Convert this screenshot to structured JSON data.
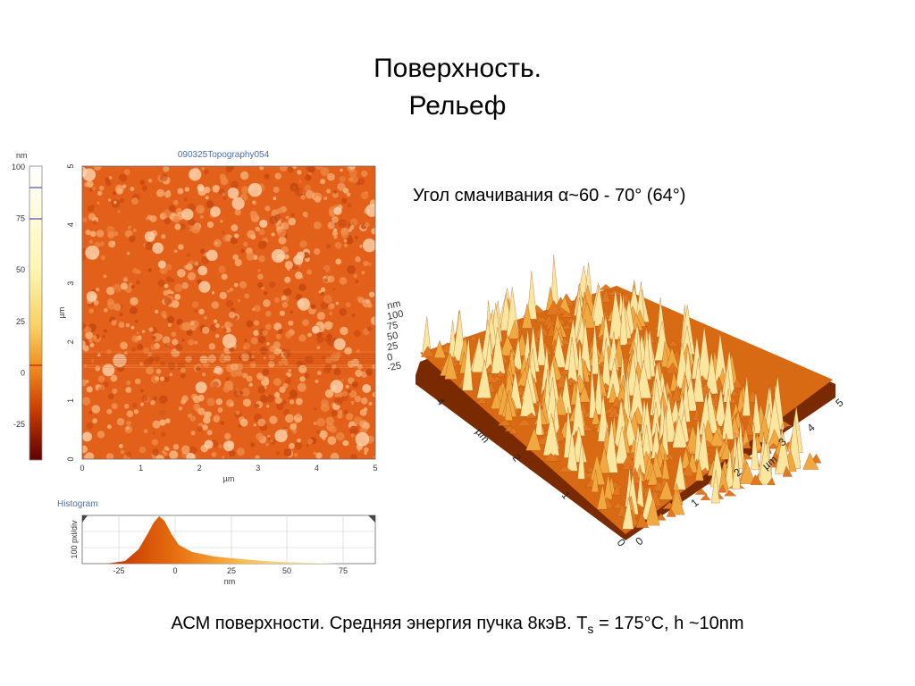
{
  "header": {
    "title_lines": [
      "Поверхность.",
      "Рельеф"
    ]
  },
  "wetting_angle": "Угол смачивания α~60 - 70° (64°)",
  "topography": {
    "title": "090325Topography054",
    "colorbar_unit": "nm",
    "colorbar_ticks": [
      "100",
      "75",
      "50",
      "25",
      "0",
      "-25"
    ],
    "y_ticks": [
      "0",
      "1",
      "2",
      "3",
      "4",
      "5"
    ],
    "y_label": "µm",
    "x_ticks": [
      "0",
      "1",
      "2",
      "3",
      "4",
      "5"
    ],
    "x_label": "µm"
  },
  "histogram": {
    "title": "Histogram",
    "y_label": "100 pxl/div",
    "x_ticks": [
      "-25",
      "0",
      "25",
      "50",
      "75"
    ],
    "x_label": "nm"
  },
  "view_3d": {
    "z_unit": "nm",
    "z_ticks": [
      "100",
      "75",
      "50",
      "25",
      "0",
      "-25"
    ],
    "left_axis_ticks": [
      "4",
      "2",
      "1",
      "0"
    ],
    "left_axis_label": "µm",
    "right_axis_ticks": [
      "0",
      "1",
      "2",
      "3",
      "4",
      "5"
    ],
    "right_axis_label": "µm"
  },
  "caption": {
    "before": "АСМ поверхности. Средняя энергия пучка 8кэВ. T",
    "subscript": "s",
    "after": " = 175°C, h ~10nm"
  }
}
